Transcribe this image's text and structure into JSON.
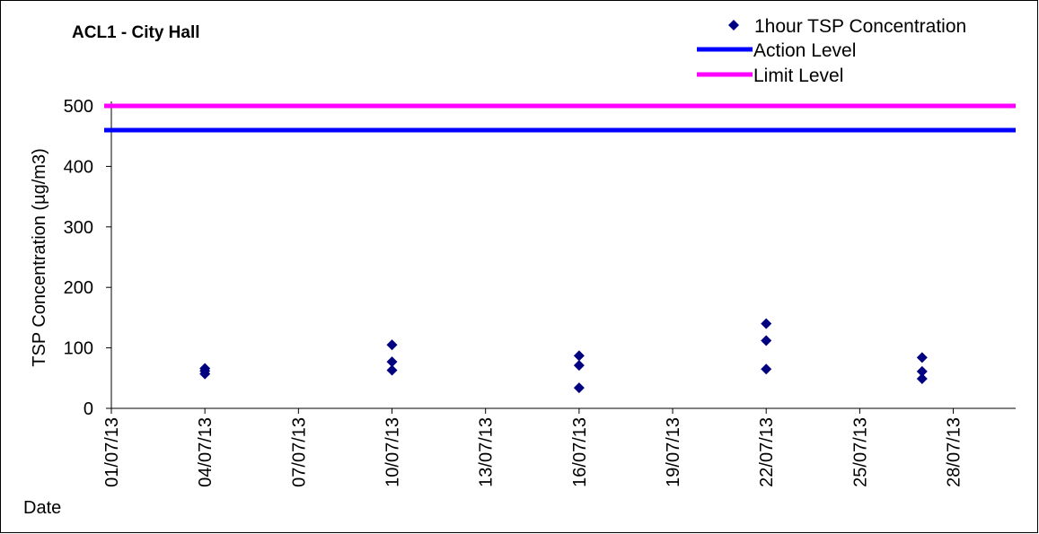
{
  "chart_data": {
    "type": "scatter",
    "title": "ACL1 - City Hall",
    "xlabel": "Date",
    "ylabel": "TSP Concentration (µg/m3)",
    "ylim": [
      0,
      500
    ],
    "yticks": [
      "0",
      "100",
      "200",
      "300",
      "400",
      "500"
    ],
    "xlim": [
      "2013-07-01",
      "2013-07-30"
    ],
    "xticks": [
      "01/07/13",
      "04/07/13",
      "07/07/13",
      "10/07/13",
      "13/07/13",
      "16/07/13",
      "19/07/13",
      "22/07/13",
      "25/07/13",
      "28/07/13"
    ],
    "grid": false,
    "legend_position": "top-right",
    "series": [
      {
        "name": "1hour TSP Concentration",
        "color": "#000080",
        "marker": "diamond",
        "points": [
          {
            "x": "2013-07-04",
            "y": 66
          },
          {
            "x": "2013-07-04",
            "y": 62
          },
          {
            "x": "2013-07-04",
            "y": 57
          },
          {
            "x": "2013-07-10",
            "y": 105
          },
          {
            "x": "2013-07-10",
            "y": 77
          },
          {
            "x": "2013-07-10",
            "y": 63
          },
          {
            "x": "2013-07-16",
            "y": 87
          },
          {
            "x": "2013-07-16",
            "y": 71
          },
          {
            "x": "2013-07-16",
            "y": 34
          },
          {
            "x": "2013-07-22",
            "y": 140
          },
          {
            "x": "2013-07-22",
            "y": 112
          },
          {
            "x": "2013-07-22",
            "y": 65
          },
          {
            "x": "2013-07-27",
            "y": 84
          },
          {
            "x": "2013-07-27",
            "y": 61
          },
          {
            "x": "2013-07-27",
            "y": 49
          }
        ]
      },
      {
        "name": "Action Level",
        "color": "#0000ff",
        "type": "line",
        "y": 460
      },
      {
        "name": "Limit Level",
        "color": "#ff00ff",
        "type": "line",
        "y": 500
      }
    ]
  }
}
